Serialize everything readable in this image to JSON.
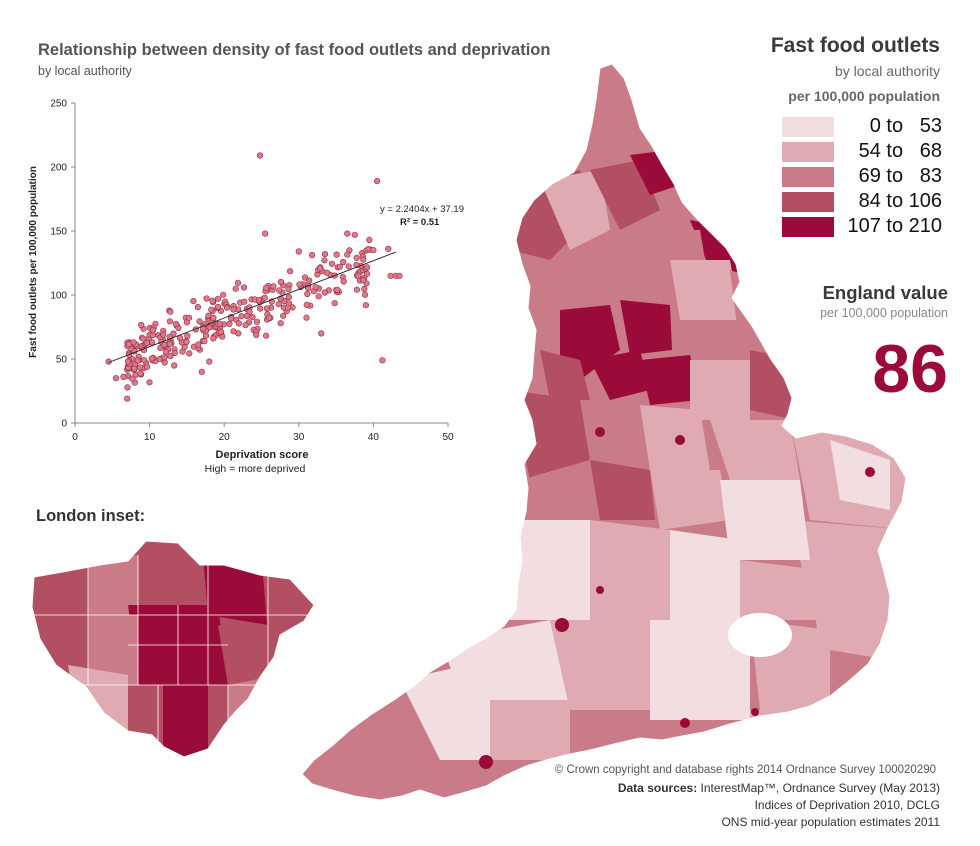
{
  "scatter": {
    "title": "Relationship between density of fast food outlets and deprivation",
    "subtitle": "by local authority",
    "chart_data": {
      "type": "scatter",
      "xlabel": "Deprivation score",
      "xlabel_note": "High = more deprived",
      "ylabel": "Fast food outlets per 100,000 population",
      "xlim": [
        0,
        50
      ],
      "ylim": [
        0,
        250
      ],
      "xticks": [
        "0",
        "10",
        "20",
        "30",
        "40",
        "50"
      ],
      "yticks": [
        "0",
        "50",
        "100",
        "150",
        "200",
        "250"
      ],
      "trendline": {
        "slope": 2.2404,
        "intercept": 37.19,
        "x_range": [
          4.5,
          43
        ]
      },
      "equation_label": "y = 2.2404x + 37.19",
      "r2_label": "R² = 0.51",
      "point_color": "#e0788c",
      "points_note": "approx. 320 local authorities",
      "points_outliers": [
        [
          4.5,
          48
        ],
        [
          7,
          19
        ],
        [
          24.8,
          209
        ],
        [
          40.5,
          189
        ],
        [
          41.2,
          49
        ],
        [
          42,
          136
        ],
        [
          43,
          115
        ],
        [
          42.3,
          115
        ],
        [
          43.5,
          115
        ],
        [
          36.5,
          148
        ],
        [
          37.5,
          147
        ],
        [
          40,
          135
        ],
        [
          38,
          115
        ],
        [
          39,
          92
        ],
        [
          35.5,
          122
        ],
        [
          30,
          134
        ],
        [
          25.5,
          148
        ],
        [
          33,
          70
        ],
        [
          17,
          40
        ],
        [
          18,
          48
        ],
        [
          5.5,
          35
        ],
        [
          6.5,
          36
        ]
      ]
    }
  },
  "map": {
    "title": "Fast food outlets",
    "subtitle": "by local authority",
    "legend_title": "per 100,000 population",
    "legend": [
      {
        "label": "  0 to   53",
        "color": "#f2dde0"
      },
      {
        "label": "54 to   68",
        "color": "#dfaab2"
      },
      {
        "label": "69 to   83",
        "color": "#c97c88"
      },
      {
        "label": "84 to 106",
        "color": "#b24f62"
      },
      {
        "label": "107 to 210",
        "color": "#9b0b3a"
      }
    ]
  },
  "england": {
    "title": "England value",
    "subtitle": "per 100,000 population",
    "value": "86"
  },
  "london": {
    "title": "London inset:"
  },
  "footer": {
    "copyright": "© Crown copyright and database rights 2014 Ordnance Survey 100020290",
    "sources_label": "Data sources:",
    "source_1": " InterestMap™, Ordnance Survey (May 2013)",
    "source_2": "Indices of Deprivation 2010, DCLG",
    "source_3": "ONS mid-year population estimates 2011"
  }
}
